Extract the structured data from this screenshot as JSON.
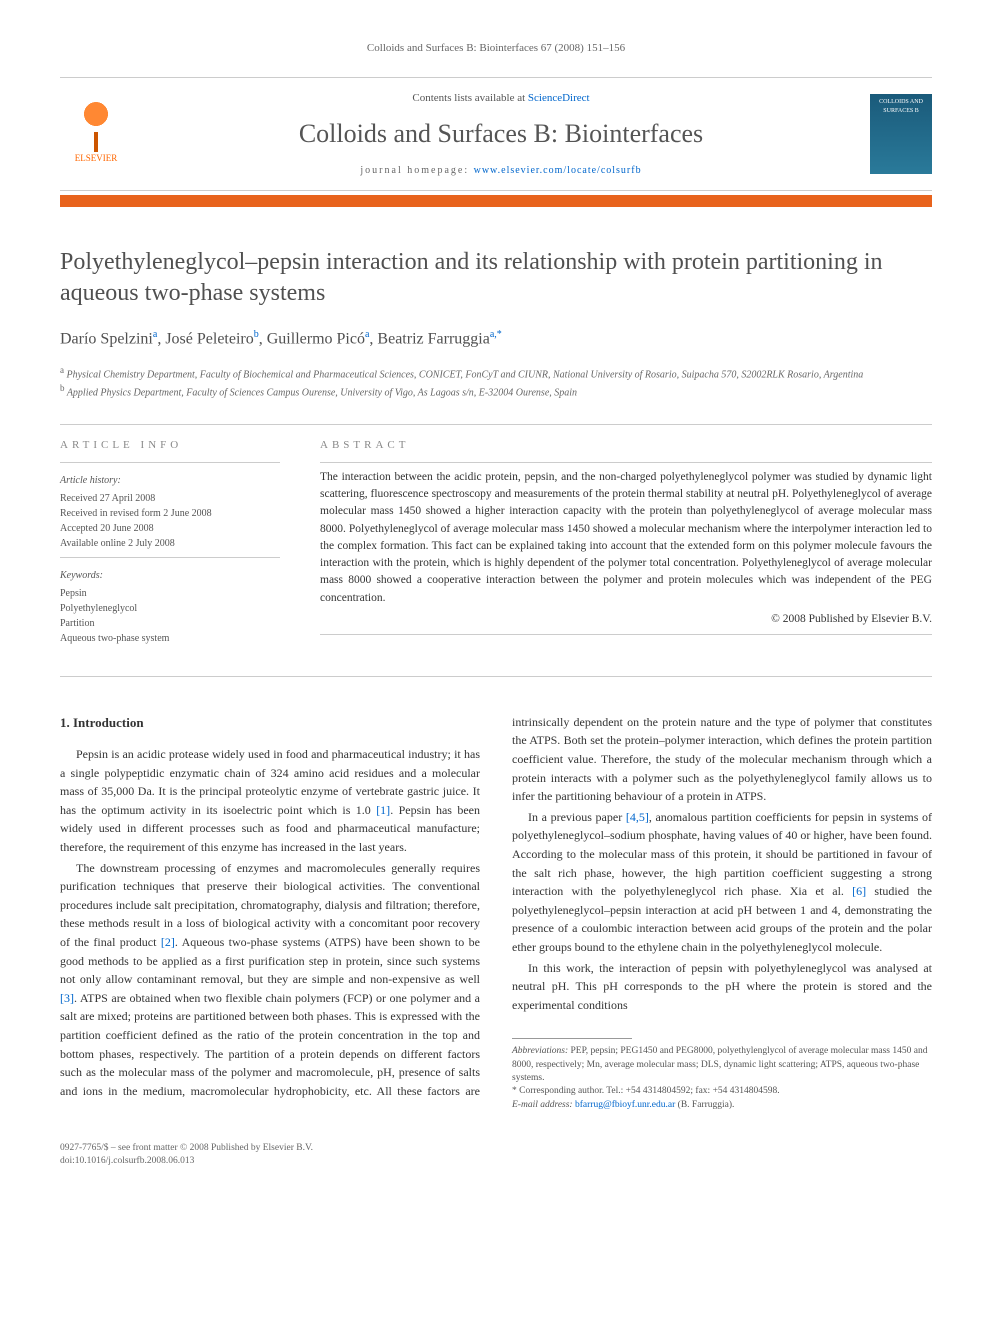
{
  "header": {
    "citation": "Colloids and Surfaces B: Biointerfaces 67 (2008) 151–156",
    "contents_prefix": "Contents lists available at ",
    "contents_link": "ScienceDirect",
    "journal_name": "Colloids and Surfaces B: Biointerfaces",
    "homepage_prefix": "journal homepage: ",
    "homepage_link": "www.elsevier.com/locate/colsurfb",
    "publisher": "ELSEVIER",
    "cover_text": "COLLOIDS AND SURFACES B"
  },
  "article": {
    "title": "Polyethyleneglycol–pepsin interaction and its relationship with protein partitioning in aqueous two-phase systems",
    "authors_html": "Darío Spelziniᵃ, José Peleteiroᵇ, Guillermo Picóᵃ, Beatriz Farruggiaᵃ,*",
    "affiliations": {
      "a": "Physical Chemistry Department, Faculty of Biochemical and Pharmaceutical Sciences, CONICET, FonCyT and CIUNR, National University of Rosario, Suipacha 570, S2002RLK Rosario, Argentina",
      "b": "Applied Physics Department, Faculty of Sciences Campus Ourense, University of Vigo, As Lagoas s/n, E-32004 Ourense, Spain"
    }
  },
  "info": {
    "heading": "ARTICLE INFO",
    "history_heading": "Article history:",
    "history": [
      "Received 27 April 2008",
      "Received in revised form 2 June 2008",
      "Accepted 20 June 2008",
      "Available online 2 July 2008"
    ],
    "keywords_heading": "Keywords:",
    "keywords": [
      "Pepsin",
      "Polyethyleneglycol",
      "Partition",
      "Aqueous two-phase system"
    ]
  },
  "abstract": {
    "heading": "ABSTRACT",
    "text": "The interaction between the acidic protein, pepsin, and the non-charged polyethyleneglycol polymer was studied by dynamic light scattering, fluorescence spectroscopy and measurements of the protein thermal stability at neutral pH. Polyethyleneglycol of average molecular mass 1450 showed a higher interaction capacity with the protein than polyethyleneglycol of average molecular mass 8000. Polyethyleneglycol of average molecular mass 1450 showed a molecular mechanism where the interpolymer interaction led to the complex formation. This fact can be explained taking into account that the extended form on this polymer molecule favours the interaction with the protein, which is highly dependent of the polymer total concentration. Polyethyleneglycol of average molecular mass 8000 showed a cooperative interaction between the polymer and protein molecules which was independent of the PEG concentration.",
    "copyright": "© 2008 Published by Elsevier B.V."
  },
  "body": {
    "section_number": "1.",
    "section_title": "Introduction",
    "p1": "Pepsin is an acidic protease widely used in food and pharmaceutical industry; it has a single polypeptidic enzymatic chain of 324 amino acid residues and a molecular mass of 35,000 Da. It is the principal proteolytic enzyme of vertebrate gastric juice. It has the optimum activity in its isoelectric point which is 1.0 ",
    "p1_cite": "[1]",
    "p1_tail": ". Pepsin has been widely used in different processes such as food and pharmaceutical manufacture; therefore, the requirement of this enzyme has increased in the last years.",
    "p2": "The downstream processing of enzymes and macromolecules generally requires purification techniques that preserve their biological activities. The conventional procedures include salt precipitation, chromatography, dialysis and filtration; therefore, these methods result in a loss of biological activity with a concomitant poor recovery of the final product ",
    "p2_cite": "[2]",
    "p2_mid": ". Aqueous two-phase systems (ATPS) have been shown to be good methods to be applied as a first purification step in protein, since such systems not only allow contaminant removal, but they are simple and non-expensive as well ",
    "p2_cite2": "[3]",
    "p2_tail": ". ATPS are obtained when two flexible chain polymers (FCP) or one polymer and a salt are mixed; proteins are partitioned between both phases. This is expressed with the partition coefficient defined as the ratio of the protein concentration in the top and bottom phases, respectively. The partition of a protein depends on different factors such as the molecular mass of the polymer and macromolecule, pH, presence of salts and ions in the medium, macromolecular hydrophobicity, etc. All these factors are intrinsically dependent on the protein nature and the type of polymer that constitutes the ATPS. Both set the protein–polymer interaction, which defines the protein partition coefficient value. Therefore, the study of the molecular mechanism through which a protein interacts with a polymer such as the polyethyleneglycol family allows us to infer the partitioning behaviour of a protein in ATPS.",
    "p3": "In a previous paper ",
    "p3_cite": "[4,5]",
    "p3_mid": ", anomalous partition coefficients for pepsin in systems of polyethyleneglycol–sodium phosphate, having values of 40 or higher, have been found. According to the molecular mass of this protein, it should be partitioned in favour of the salt rich phase, however, the high partition coefficient suggesting a strong interaction with the polyethyleneglycol rich phase. Xia et al. ",
    "p3_cite2": "[6]",
    "p3_tail": " studied the polyethyleneglycol–pepsin interaction at acid pH between 1 and 4, demonstrating the presence of a coulombic interaction between acid groups of the protein and the polar ether groups bound to the ethylene chain in the polyethyleneglycol molecule.",
    "p4": "In this work, the interaction of pepsin with polyethyleneglycol was analysed at neutral pH. This pH corresponds to the pH where the protein is stored and the experimental conditions"
  },
  "footnotes": {
    "abbrev_label": "Abbreviations:",
    "abbrev_text": " PEP, pepsin; PEG1450 and PEG8000, polyethylenglycol of average molecular mass 1450 and 8000, respectively; Mn, average molecular mass; DLS, dynamic light scattering; ATPS, aqueous two-phase systems.",
    "corr_label": "* Corresponding author. ",
    "corr_text": "Tel.: +54 4314804592; fax: +54 4314804598.",
    "email_label": "E-mail address: ",
    "email": "bfarrug@fbioyf.unr.edu.ar",
    "email_tail": " (B. Farruggia)."
  },
  "footer": {
    "issn": "0927-7765/$ – see front matter © 2008 Published by Elsevier B.V.",
    "doi": "doi:10.1016/j.colsurfb.2008.06.013"
  },
  "colors": {
    "accent_orange": "#e8631c",
    "link_blue": "#0066cc",
    "text_gray": "#333333",
    "muted_gray": "#666666"
  }
}
